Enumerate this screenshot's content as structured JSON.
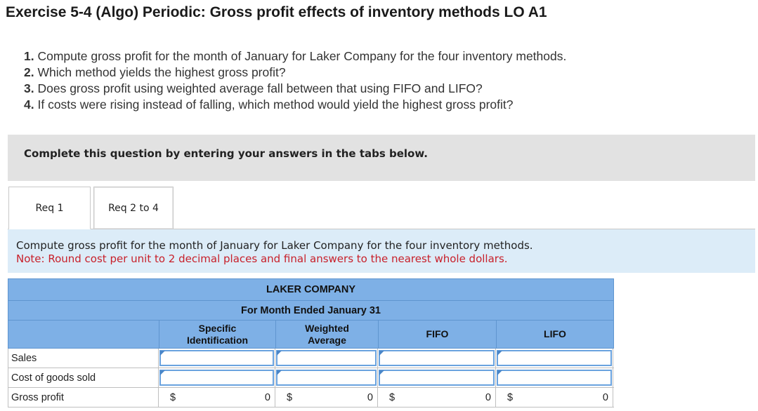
{
  "header": {
    "title": "Exercise 5-4 (Algo) Periodic: Gross profit effects of inventory methods LO A1"
  },
  "questions": [
    {
      "num": "1.",
      "text": "Compute gross profit for the month of January for Laker Company for the four inventory methods."
    },
    {
      "num": "2.",
      "text": "Which method yields the highest gross profit?"
    },
    {
      "num": "3.",
      "text": "Does gross profit using weighted average fall between that using FIFO and LIFO?"
    },
    {
      "num": "4.",
      "text": "If costs were rising instead of falling, which method would yield the highest gross profit?"
    }
  ],
  "banner": {
    "text": "Complete this question by entering your answers in the tabs below."
  },
  "tabs": [
    {
      "label": "Req 1",
      "active": true
    },
    {
      "label": "Req 2 to 4",
      "active": false
    }
  ],
  "instructions": {
    "main": "Compute gross profit for the month of January for Laker Company for the four inventory methods.",
    "note": "Note: Round cost per unit to 2 decimal places and final answers to the nearest whole dollars."
  },
  "worksheet": {
    "company": "LAKER COMPANY",
    "period": "For Month Ended January 31",
    "columns": [
      {
        "line1": "Specific",
        "line2": "Identification"
      },
      {
        "line1": "Weighted",
        "line2": "Average"
      },
      {
        "line1": "FIFO",
        "line2": ""
      },
      {
        "line1": "LIFO",
        "line2": ""
      }
    ],
    "rows": [
      {
        "label": "Sales",
        "values": [
          "",
          "",
          "",
          ""
        ]
      },
      {
        "label": "Cost of goods sold",
        "values": [
          "",
          "",
          "",
          ""
        ]
      },
      {
        "label": "Gross profit",
        "currency": "$",
        "values": [
          "0",
          "0",
          "0",
          "0"
        ]
      }
    ]
  },
  "colors": {
    "header_bg": "#7eb0e6",
    "instruction_bg": "#dcecf8",
    "note_red": "#c8202a",
    "input_border": "#6aa3df"
  }
}
